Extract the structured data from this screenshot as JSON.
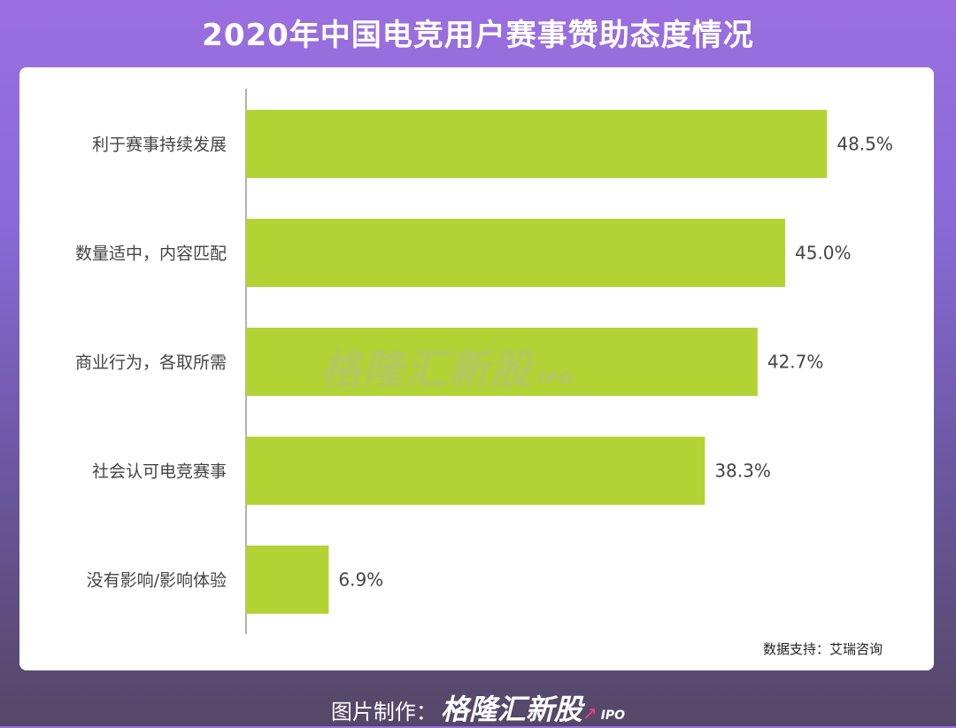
{
  "header": {
    "title": "2020年中国电竞用户赛事赞助态度情况"
  },
  "watermark": {
    "brand": "格隆汇新股",
    "sub": "IPO"
  },
  "source": "数据支持：艾瑞咨询",
  "footer": {
    "prefix": "图片制作：",
    "brand": "格隆汇新股",
    "sub": "IPO"
  },
  "colors": {
    "bar": "#b3d334",
    "background_top": "#9b6fe0",
    "background_bottom": "#544766",
    "accent_arrow": "#ff3d7f"
  },
  "chart_data": {
    "type": "bar",
    "orientation": "horizontal",
    "categories": [
      "利于赛事持续发展",
      "数量适中，内容匹配",
      "商业行为，各取所需",
      "社会认可电竞赛事",
      "没有影响/影响体验"
    ],
    "values": [
      48.5,
      45.0,
      42.7,
      38.3,
      6.9
    ],
    "value_labels": [
      "48.5%",
      "45.0%",
      "42.7%",
      "38.3%",
      "6.9%"
    ],
    "xlim": [
      0,
      60
    ],
    "grid": false,
    "legend": "none"
  }
}
